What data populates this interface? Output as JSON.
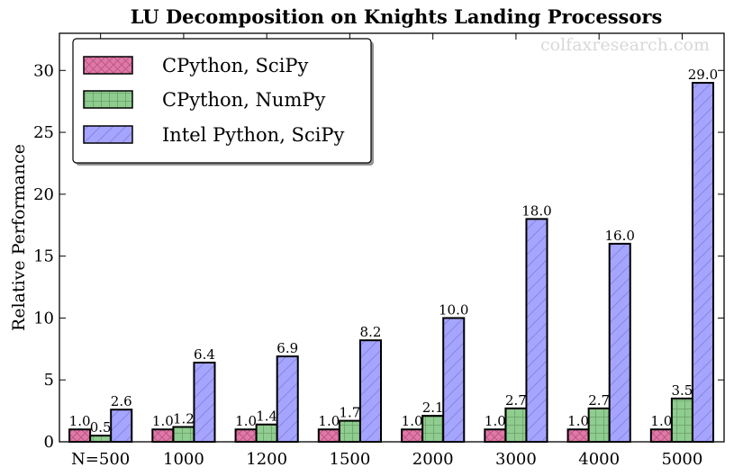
{
  "watermark": "colfaxresearch.com",
  "chart_data": {
    "type": "bar",
    "title": "LU Decomposition on Knights Landing Processors",
    "xlabel": "",
    "ylabel": "Relative Performance",
    "categories": [
      "N=500",
      "1000",
      "1200",
      "1500",
      "2000",
      "3000",
      "4000",
      "5000"
    ],
    "ylim": [
      0,
      33
    ],
    "yticks": [
      0,
      5,
      10,
      15,
      20,
      25,
      30
    ],
    "grid": false,
    "legend_position": "top-left",
    "series": [
      {
        "name": "CPython, SciPy",
        "color": "#e377a8",
        "hatch": "cross",
        "values": [
          1.0,
          1.0,
          1.0,
          1.0,
          1.0,
          1.0,
          1.0,
          1.0
        ],
        "labels": [
          "1.0",
          "1.0",
          "1.0",
          "1.0",
          "1.0",
          "1.0",
          "1.0",
          "1.0"
        ]
      },
      {
        "name": "CPython, NumPy",
        "color": "#8fcc8f",
        "hatch": "grid",
        "values": [
          0.5,
          1.2,
          1.4,
          1.7,
          2.1,
          2.7,
          2.7,
          3.5
        ],
        "labels": [
          "0.5",
          "1.2",
          "1.4",
          "1.7",
          "2.1",
          "2.7",
          "2.7",
          "3.5"
        ]
      },
      {
        "name": "Intel Python, SciPy",
        "color": "#a5a5ff",
        "hatch": "diagonal",
        "values": [
          2.6,
          6.4,
          6.9,
          8.2,
          10.0,
          18.0,
          16.0,
          29.0
        ],
        "labels": [
          "2.6",
          "6.4",
          "6.9",
          "8.2",
          "10.0",
          "18.0",
          "16.0",
          "29.0"
        ]
      }
    ]
  }
}
